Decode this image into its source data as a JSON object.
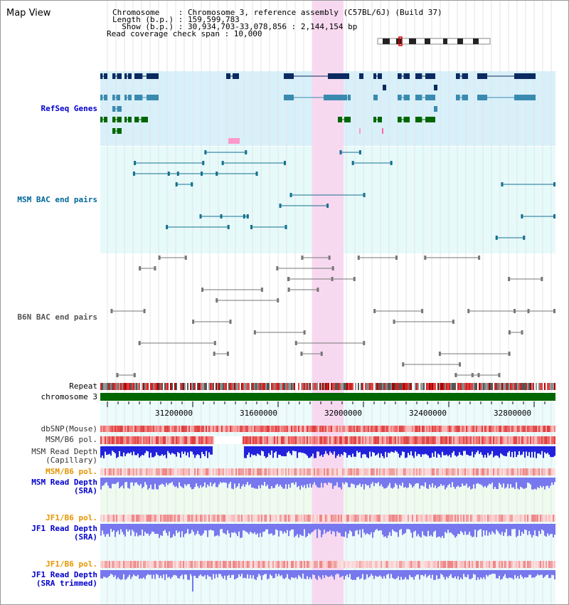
{
  "header": {
    "title": "Map View",
    "info_lines": [
      "Chromosome    : Chromosome 3, reference assembly (C57BL/6J) (Build 37)",
      "Length (b.p.) : 159,599,783",
      "  Show (b.p.) : 30,934,703-33,078,856 : 2,144,154 bp",
      "Read coverage check span : 10,000"
    ]
  },
  "tracks": {
    "refseq": "RefSeq Genes",
    "msm_bac": "MSM BAC end pairs",
    "b6n_bac": "B6N BAC end pairs",
    "repeat": "Repeat",
    "chromosome": "chromosome 3",
    "dbsnp": "dbSNP(Mouse)",
    "msm_b6_pol_1": "MSM/B6 pol.",
    "msm_read_depth_cap_1": "MSM Read Depth",
    "msm_read_depth_cap_2": "(Capillary)",
    "msm_b6_pol_2": "MSM/B6 pol.",
    "msm_read_depth_sra_1": "MSM Read Depth",
    "msm_read_depth_sra_2": "(SRA)",
    "jf1_b6_pol_1": "JF1/B6 pol.",
    "jf1_read_depth_sra_1": "JF1 Read Depth",
    "jf1_read_depth_sra_2": "(SRA)",
    "jf1_b6_pol_2": "JF1/B6 pol.",
    "jf1_read_depth_trim_1": "JF1 Read Depth",
    "jf1_read_depth_trim_2": "(SRA trimmed)"
  },
  "axis_ticks": [
    "31200000",
    "31600000",
    "32000000",
    "32400000",
    "32800000"
  ],
  "colors": {
    "refseq_bg": "#d8f0fa",
    "bac_bg": "#e6fafa",
    "highlight": "#f8d8f0",
    "gene_dark": "#0a2a60",
    "gene_mid": "#3a8ab0",
    "gene_green": "#006600",
    "bac_teal": "#157090",
    "bac_gray": "#777777",
    "chromosome_bar": "#006600",
    "depth_blue": "#2222dd",
    "depth_light": "#7777ee"
  }
}
